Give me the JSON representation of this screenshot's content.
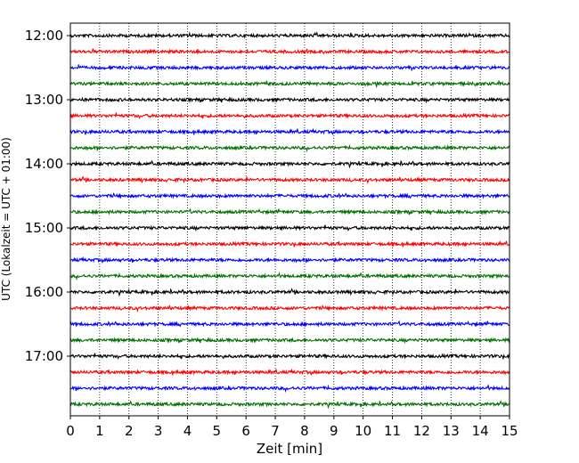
{
  "chart_data": {
    "type": "line",
    "title": "",
    "xlabel": "Zeit  [min]",
    "ylabel": "UTC (Lokalzeit = UTC + 01:00)",
    "xlim": [
      0,
      15
    ],
    "x_ticks": [
      "0",
      "1",
      "2",
      "3",
      "4",
      "5",
      "6",
      "7",
      "8",
      "9",
      "10",
      "11",
      "12",
      "13",
      "14",
      "15"
    ],
    "y_ticks": [
      "12:00",
      "13:00",
      "14:00",
      "15:00",
      "16:00",
      "17:00"
    ],
    "grid": "vertical dotted at each minute",
    "trace_start_times": [
      "12:00",
      "12:15",
      "12:30",
      "12:45",
      "13:00",
      "13:15",
      "13:30",
      "13:45",
      "14:00",
      "14:15",
      "14:30",
      "14:45",
      "15:00",
      "15:15",
      "15:30",
      "15:45",
      "16:00",
      "16:15",
      "16:30",
      "16:45",
      "17:00",
      "17:15",
      "17:30",
      "17:45"
    ],
    "trace_colors": [
      "#000000",
      "#ff0000",
      "#0000ff",
      "#007000"
    ]
  }
}
